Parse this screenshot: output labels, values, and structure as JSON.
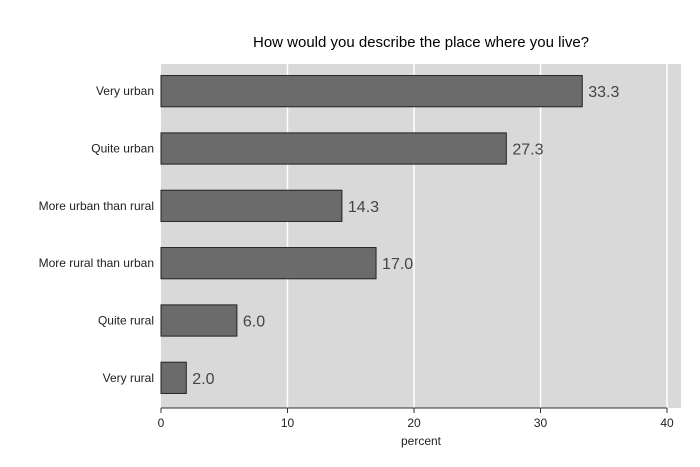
{
  "chart_data": {
    "type": "bar",
    "orientation": "horizontal",
    "title": "How would you describe the place where you live?",
    "xlabel": "percent",
    "ylabel": "",
    "categories": [
      "Very urban",
      "Quite urban",
      "More urban than rural",
      "More rural than urban",
      "Quite rural",
      "Very rural"
    ],
    "values": [
      33.3,
      27.3,
      14.3,
      17.0,
      6.0,
      2.0
    ],
    "data_labels": [
      "33.3",
      "27.3",
      "14.3",
      "17.0",
      "6.0",
      "2.0"
    ],
    "xlim": [
      0,
      40
    ],
    "xticks": [
      0,
      10,
      20,
      30,
      40
    ],
    "grid": true,
    "colors": {
      "bar": "#6b6b6b",
      "bar_edge": "#222222",
      "plot_bg": "#d9d9d9",
      "grid": "#ffffff"
    }
  }
}
